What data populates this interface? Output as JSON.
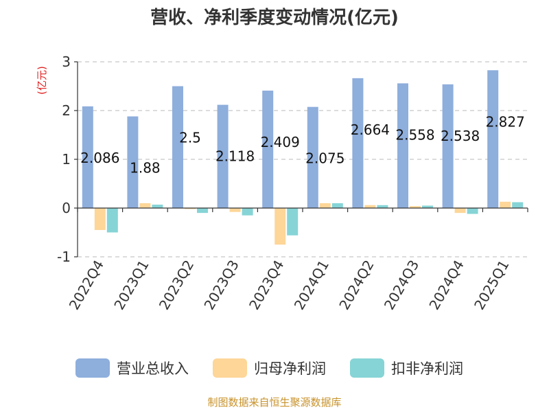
{
  "chart_data": {
    "type": "bar",
    "title": "营收、净利季度变动情况(亿元)",
    "unit_label": "(亿元)",
    "categories": [
      "2022Q4",
      "2023Q1",
      "2023Q2",
      "2023Q3",
      "2023Q4",
      "2024Q1",
      "2024Q2",
      "2024Q3",
      "2024Q4",
      "2025Q1"
    ],
    "series": [
      {
        "name": "营业总收入",
        "color": "#8eaedc",
        "values": [
          2.086,
          1.88,
          2.5,
          2.118,
          2.409,
          2.075,
          2.664,
          2.558,
          2.538,
          2.827
        ],
        "labels": [
          "2.086",
          "1.88",
          "2.5",
          "2.118",
          "2.409",
          "2.075",
          "2.664",
          "2.558",
          "2.538",
          "2.827"
        ]
      },
      {
        "name": "归母净利润",
        "color": "#fdd698",
        "values": [
          -0.45,
          0.1,
          -0.02,
          -0.08,
          -0.75,
          0.1,
          0.06,
          0.04,
          -0.1,
          0.13
        ]
      },
      {
        "name": "扣非净利润",
        "color": "#86d4d6",
        "values": [
          -0.5,
          0.07,
          -0.1,
          -0.15,
          -0.56,
          0.1,
          0.06,
          0.05,
          -0.12,
          0.12
        ]
      }
    ],
    "yticks": [
      -1,
      0,
      1,
      2,
      3
    ],
    "ylim": [
      -1,
      3
    ],
    "grid": true,
    "legend_position": "bottom",
    "source": "制图数据来自恒生聚源数据库"
  }
}
